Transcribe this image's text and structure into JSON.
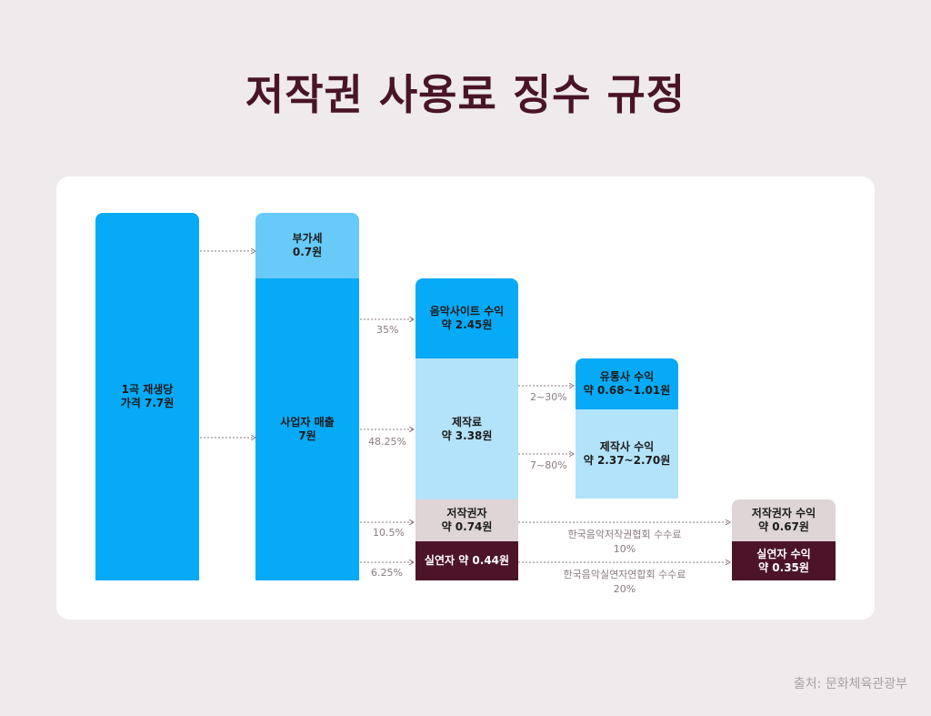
{
  "title": "저작권 사용료 징수 규정",
  "source": "출처: 문화체육관광부",
  "boxes": {
    "price": {
      "line1": "1곡 재생당",
      "line2": "가격 7.7원"
    },
    "vat": {
      "line1": "부가세",
      "line2": "0.7원"
    },
    "sales": {
      "line1": "사업자 매출",
      "line2": "7원"
    },
    "site": {
      "line1": "음악사이트 수익",
      "line2": "약 2.45원"
    },
    "production": {
      "line1": "제작료",
      "line2": "약 3.38원"
    },
    "copyright": {
      "line1": "저작권자",
      "line2": "약 0.74원"
    },
    "performer": {
      "line1": "실연자 약 0.44원"
    },
    "distributor": {
      "line1": "유통사 수익",
      "line2": "약 0.68~1.01원"
    },
    "producer": {
      "line1": "제작사 수익",
      "line2": "약 2.37~2.70원"
    },
    "copyright_income": {
      "line1": "저작권자 수익",
      "line2": "약 0.67원"
    },
    "performer_income": {
      "line1": "실연자 수익",
      "line2": "약 0.35원"
    }
  },
  "percentages": {
    "site": "35%",
    "production": "48.25%",
    "copyright": "10.5%",
    "performer": "6.25%",
    "distributor": "2~30%",
    "producer": "7~80%"
  },
  "fees": {
    "komca": {
      "name": "한국음악저작권협회 수수료",
      "rate": "10%"
    },
    "fkmp": {
      "name": "한국음악실연자연합회 수수료",
      "rate": "20%"
    }
  },
  "colors": {
    "title": "#4a1428",
    "blue": "#06aaf6",
    "sky": "#67caf8",
    "pale": "#b3e3fb",
    "rose": "#dfd4d6",
    "wine": "#4d1429",
    "background": "#efeaeb"
  }
}
